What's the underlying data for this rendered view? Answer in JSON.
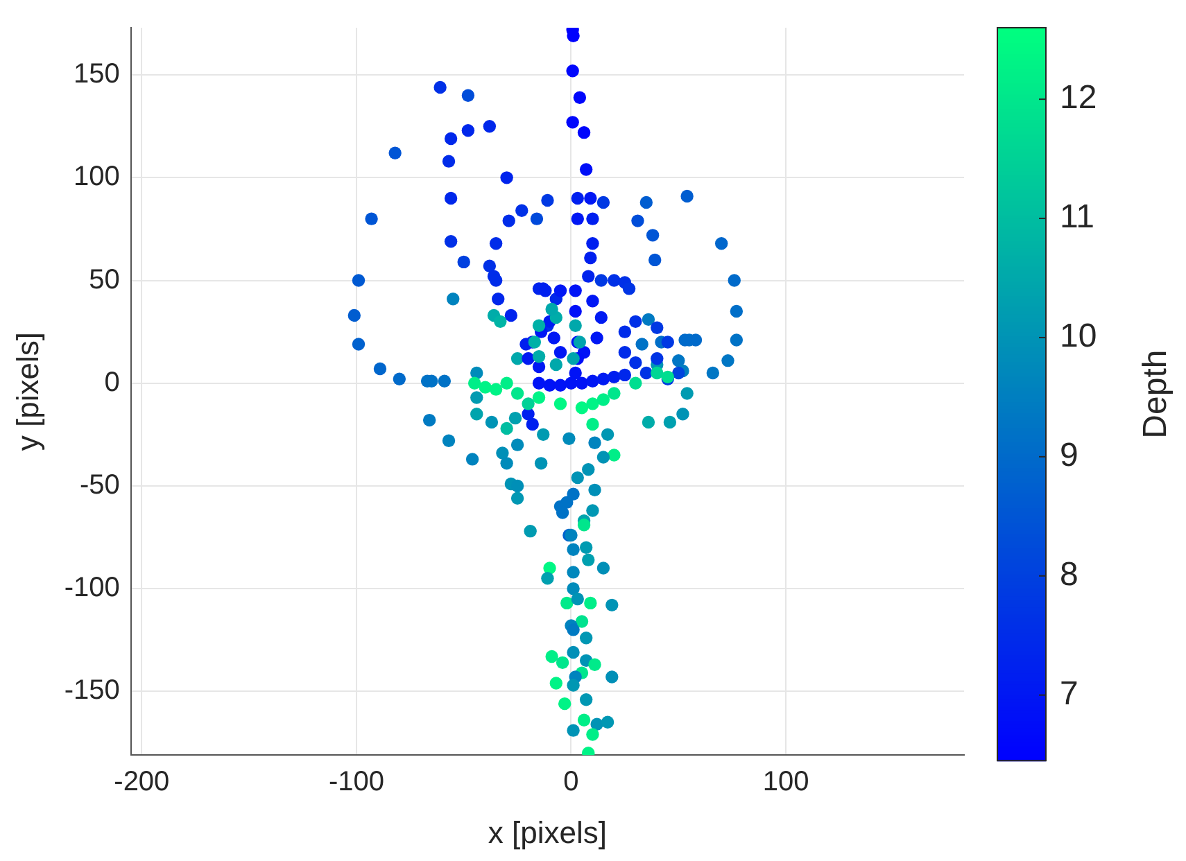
{
  "chart_data": {
    "type": "scatter",
    "xlabel": "x [pixels]",
    "ylabel": "y [pixels]",
    "clabel": "Depth",
    "xlim": [
      -205,
      183
    ],
    "ylim": [
      -181,
      173
    ],
    "xticks": [
      -200,
      -100,
      0,
      100
    ],
    "yticks": [
      -150,
      -100,
      -50,
      0,
      50,
      100,
      150
    ],
    "clim": [
      6.45,
      12.6
    ],
    "cticks": [
      7,
      8,
      9,
      10,
      11,
      12
    ],
    "grid": true,
    "marker": "circle",
    "x": [
      0.7,
      1,
      0.7,
      4,
      0.7,
      6,
      7,
      3,
      9,
      15,
      3,
      10,
      10,
      9,
      8,
      14,
      -61,
      -48,
      -82,
      -56,
      -48,
      -38,
      -57,
      -30,
      -56,
      -93,
      -23,
      -11,
      -29,
      -16,
      -56,
      -35,
      -50,
      -38,
      -36,
      -99,
      -101,
      -99,
      -89,
      -80,
      -67,
      -65,
      -59,
      -55,
      -44,
      -44,
      -44,
      -66,
      -57,
      -46,
      -32,
      -37,
      -25,
      -14,
      -13,
      -26,
      -30,
      -28,
      -25,
      -25,
      -19,
      -35,
      -34,
      -28,
      -36,
      -33,
      -15,
      -13,
      -7,
      -11,
      -21,
      -25,
      35,
      54,
      31,
      38,
      70,
      39,
      76,
      20,
      25,
      27,
      77,
      77,
      73,
      66,
      55,
      58,
      53,
      50,
      42,
      33,
      36,
      52,
      54,
      46,
      36,
      52,
      40,
      -12,
      -5,
      2,
      10,
      14,
      12,
      6,
      -5,
      -8,
      -10,
      -14,
      -18,
      -20,
      -15,
      2,
      3,
      3,
      2,
      -15,
      -10,
      -5,
      0,
      5,
      10,
      15,
      20,
      25,
      -20,
      -18,
      25,
      30,
      40,
      45,
      40,
      30,
      25,
      35,
      45,
      50,
      -7,
      2,
      4,
      1,
      -7,
      -15,
      -17,
      -15,
      -9,
      -45,
      -40,
      -35,
      -30,
      -25,
      -15,
      -5,
      5,
      10,
      15,
      20,
      30,
      40,
      45,
      10,
      20,
      -20,
      -30,
      -1,
      11,
      15,
      17,
      3,
      8,
      11,
      10,
      -5,
      -2,
      1,
      -4,
      -1,
      6,
      6,
      0,
      1,
      7,
      8,
      -10,
      -11,
      1,
      15,
      1,
      -2,
      3,
      9,
      19,
      5,
      0,
      1,
      7,
      -9,
      -4,
      1,
      7,
      11,
      5,
      2,
      1,
      19,
      -7,
      7,
      -3,
      6,
      12,
      17,
      1,
      10,
      8
    ],
    "values": [
      172,
      169,
      152,
      139,
      127,
      122,
      104,
      90,
      90,
      88,
      80,
      80,
      68,
      61,
      52,
      50,
      144,
      140,
      112,
      119,
      123,
      125,
      108,
      100,
      90,
      80,
      84,
      89,
      79,
      80,
      69,
      68,
      59,
      57,
      52,
      50,
      33,
      19,
      7,
      2,
      1,
      1,
      1,
      41,
      5,
      -7,
      -15,
      -18,
      -28,
      -37,
      -34,
      -19,
      -30,
      -39,
      -25,
      -17,
      -39,
      -49,
      -50,
      -56,
      -72,
      50,
      41,
      33,
      33,
      30,
      46,
      46,
      41,
      28,
      19,
      12,
      88,
      91,
      79,
      72,
      68,
      60,
      50,
      50,
      49,
      46,
      35,
      21,
      11,
      5,
      21,
      21,
      21,
      11,
      20,
      19,
      31,
      -15,
      -5,
      -19,
      -19,
      6,
      9,
      45,
      45,
      45,
      40,
      32,
      22,
      15,
      15,
      22,
      30,
      25,
      20,
      12,
      8,
      35,
      20,
      12,
      5,
      0,
      -1,
      -1,
      0,
      0,
      1,
      2,
      3,
      4,
      -15,
      -20,
      25,
      30,
      27,
      20,
      12,
      10,
      15,
      5,
      2,
      5,
      32,
      28,
      20,
      12,
      9,
      13,
      20,
      28,
      36,
      0,
      -2,
      -3,
      0,
      -5,
      -7,
      -10,
      -12,
      -10,
      -8,
      -5,
      0,
      5,
      3,
      -20,
      -35,
      -10,
      -22,
      -27,
      -29,
      -36,
      -25,
      -46,
      -42,
      -52,
      -62,
      -60,
      -58,
      -54,
      -63,
      -74,
      -67,
      -69,
      -74,
      -81,
      -80,
      -86,
      -90,
      -95,
      -92,
      -90,
      -100,
      -107,
      -105,
      -107,
      -108,
      -116,
      -118,
      -120,
      -124,
      -133,
      -136,
      -131,
      -135,
      -137,
      -141,
      -143,
      -147,
      -143,
      -146,
      -154,
      -156,
      -164,
      -166,
      -165,
      -169,
      -171,
      -180
    ],
    "cvalues": [
      6.5,
      6.5,
      6.6,
      6.6,
      6.6,
      6.6,
      6.8,
      7.2,
      7,
      7.8,
      7,
      7.2,
      7.2,
      7.2,
      7.3,
      7.8,
      7.6,
      8.3,
      8.5,
      7.4,
      7.4,
      7.4,
      7.5,
      7.3,
      7.4,
      8.5,
      7.6,
      7.8,
      7.5,
      8.2,
      7.6,
      7.5,
      8,
      7.6,
      7.5,
      8.6,
      8.7,
      8.8,
      8.9,
      9,
      9.2,
      9.2,
      9.2,
      9.6,
      9.8,
      10.2,
      10.4,
      9.4,
      9.6,
      9.6,
      9.9,
      10,
      9.8,
      10,
      10.2,
      10.3,
      9.8,
      10,
      9.9,
      10.1,
      10.2,
      7.5,
      7.4,
      7.3,
      10.6,
      10.8,
      7.3,
      7.3,
      7.4,
      7.5,
      7.2,
      10.5,
      8.7,
      8.7,
      8.3,
      8.5,
      8.9,
      8.5,
      9,
      7.6,
      7.6,
      7.7,
      9.1,
      9.2,
      9.3,
      9.3,
      9.1,
      9,
      9,
      9.3,
      9.1,
      9.2,
      9.4,
      10,
      10.2,
      10.3,
      10.6,
      9.5,
      10,
      7.2,
      7,
      6.9,
      7,
      7.1,
      7,
      6.9,
      7,
      7,
      7.1,
      7,
      7.2,
      7.1,
      7,
      6.8,
      6.8,
      6.8,
      6.9,
      6.9,
      6.9,
      6.9,
      6.9,
      6.9,
      7,
      7.1,
      7.2,
      7.4,
      7.2,
      7.2,
      7.5,
      7.6,
      7.8,
      7.8,
      7.7,
      7.6,
      7.5,
      7.7,
      7.9,
      8.1,
      10.6,
      10.5,
      10.4,
      10.4,
      10.5,
      10.6,
      10.7,
      10.7,
      10.5,
      12.2,
      12.3,
      12.3,
      12.2,
      12,
      12.3,
      12.4,
      12.4,
      12.3,
      12.2,
      12,
      11.8,
      11.6,
      11.8,
      12.2,
      12.2,
      11.5,
      11,
      9.8,
      9.6,
      10,
      10.1,
      10,
      10,
      9.9,
      10.1,
      9.2,
      9.2,
      9.2,
      9.2,
      8.8,
      10.4,
      12,
      9.6,
      9.6,
      10.2,
      10.3,
      12.4,
      10.3,
      9.7,
      9.9,
      9.8,
      12.1,
      10,
      12.2,
      10,
      11.9,
      9.6,
      9.4,
      10.1,
      12.2,
      12,
      9.9,
      10,
      12.1,
      12,
      9.6,
      10.1,
      9.9,
      12.3,
      10.1,
      12.3,
      12.2,
      10,
      10.1,
      10,
      12.2,
      12.3
    ]
  }
}
